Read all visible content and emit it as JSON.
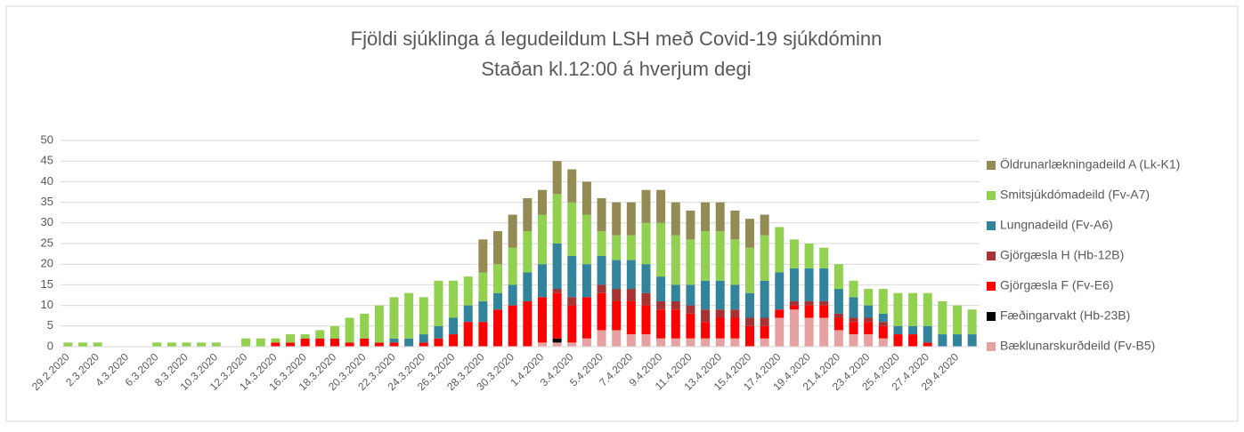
{
  "chart_data": {
    "type": "stacked_bar",
    "title": "Fjöldi sjúklinga á legudeildum LSH með Covid-19 sjúkdóminn",
    "subtitle": "Staðan kl.12:00 á hverjum degi",
    "categories": [
      "29.2.2020",
      null,
      "2.3.2020",
      null,
      "4.3.2020",
      null,
      "6.3.2020",
      null,
      "8.3.2020",
      null,
      "10.3.2020",
      null,
      "12.3.2020",
      null,
      "14.3.2020",
      null,
      "16.3.2020",
      null,
      "18.3.2020",
      null,
      "20.3.2020",
      null,
      "22.3.2020",
      null,
      "24.3.2020",
      null,
      "26.3.2020",
      null,
      "28.3.2020",
      null,
      "30.3.2020",
      null,
      "1.4.2020",
      null,
      "3.4.2020",
      null,
      "5.4.2020",
      null,
      "7.4.2020",
      null,
      "9.4.2020",
      null,
      "11.4.2020",
      null,
      "13.4.2020",
      null,
      "15.4.2020",
      null,
      "17.4.2020",
      null,
      "19.4.2020",
      null,
      "21.4.2020",
      null,
      "23.4.2020",
      null,
      "25.4.2020",
      null,
      "27.4.2020",
      null,
      "29.4.2020",
      null
    ],
    "series": [
      {
        "name": "Bæklunarskurðdeild (Fv-B5)",
        "color": "#e6a1a1",
        "values": [
          0,
          0,
          0,
          0,
          0,
          0,
          0,
          0,
          0,
          0,
          0,
          0,
          0,
          0,
          0,
          0,
          0,
          0,
          0,
          0,
          0,
          0,
          0,
          0,
          0,
          0,
          0,
          0,
          0,
          0,
          0,
          0,
          1,
          1,
          1,
          2,
          4,
          4,
          3,
          3,
          2,
          2,
          2,
          2,
          2,
          2,
          0,
          2,
          7,
          9,
          7,
          7,
          4,
          3,
          3,
          2,
          0,
          0,
          0,
          0,
          0,
          0
        ]
      },
      {
        "name": "Fæðingarvakt (Hb-23B)",
        "color": "#000000",
        "values": [
          0,
          0,
          0,
          0,
          0,
          0,
          0,
          0,
          0,
          0,
          0,
          0,
          0,
          0,
          0,
          0,
          0,
          0,
          0,
          0,
          0,
          0,
          0,
          0,
          0,
          0,
          0,
          0,
          0,
          0,
          0,
          0,
          0,
          1,
          0,
          0,
          0,
          0,
          0,
          0,
          0,
          0,
          0,
          0,
          0,
          0,
          0,
          0,
          0,
          0,
          0,
          0,
          0,
          0,
          0,
          0,
          0,
          0,
          0,
          0,
          0,
          0
        ]
      },
      {
        "name": "Gjörgæsla F (Fv-E6)",
        "color": "#ff0000",
        "values": [
          0,
          0,
          0,
          0,
          0,
          0,
          0,
          0,
          0,
          0,
          0,
          0,
          0,
          0,
          1,
          1,
          2,
          2,
          2,
          1,
          2,
          1,
          1,
          0,
          1,
          2,
          3,
          6,
          6,
          9,
          10,
          11,
          11,
          11,
          9,
          10,
          9,
          7,
          8,
          7,
          7,
          7,
          6,
          4,
          5,
          5,
          5,
          3,
          2,
          1,
          3,
          3,
          3,
          3,
          3,
          3,
          3,
          3,
          1,
          0,
          0,
          0
        ]
      },
      {
        "name": "Gjörgæsla H (Hb-12B)",
        "color": "#a83232",
        "values": [
          0,
          0,
          0,
          0,
          0,
          0,
          0,
          0,
          0,
          0,
          0,
          0,
          0,
          0,
          0,
          0,
          0,
          0,
          0,
          0,
          0,
          0,
          0,
          0,
          0,
          0,
          0,
          0,
          0,
          0,
          0,
          0,
          0,
          1,
          2,
          0,
          2,
          3,
          3,
          3,
          2,
          2,
          2,
          3,
          2,
          2,
          2,
          2,
          0,
          1,
          1,
          1,
          1,
          1,
          1,
          1,
          0,
          0,
          0,
          0,
          0,
          0
        ]
      },
      {
        "name": "Lungnadeild (Fv-A6)",
        "color": "#31849b",
        "values": [
          0,
          0,
          0,
          0,
          0,
          0,
          0,
          0,
          0,
          0,
          0,
          0,
          0,
          0,
          0,
          0,
          0,
          0,
          0,
          0,
          0,
          0,
          1,
          2,
          2,
          3,
          4,
          4,
          5,
          4,
          5,
          7,
          8,
          11,
          10,
          8,
          7,
          7,
          7,
          7,
          6,
          4,
          5,
          7,
          7,
          6,
          6,
          9,
          9,
          8,
          8,
          8,
          6,
          5,
          3,
          2,
          2,
          2,
          4,
          3,
          3,
          3
        ]
      },
      {
        "name": "Smitsjúkdómadeild (Fv-A7)",
        "color": "#92d050",
        "values": [
          1,
          1,
          1,
          0,
          0,
          0,
          1,
          1,
          1,
          1,
          1,
          0,
          2,
          2,
          1,
          2,
          1,
          2,
          3,
          6,
          6,
          9,
          10,
          11,
          9,
          11,
          9,
          7,
          7,
          7,
          9,
          10,
          12,
          12,
          13,
          12,
          6,
          6,
          6,
          10,
          13,
          12,
          11,
          12,
          12,
          11,
          11,
          11,
          11,
          7,
          6,
          5,
          6,
          4,
          4,
          6,
          8,
          8,
          8,
          8,
          7,
          6
        ]
      },
      {
        "name": "Öldrunarlækningadeild A (Lk-K1)",
        "color": "#948a54",
        "values": [
          0,
          0,
          0,
          0,
          0,
          0,
          0,
          0,
          0,
          0,
          0,
          0,
          0,
          0,
          0,
          0,
          0,
          0,
          0,
          0,
          0,
          0,
          0,
          0,
          0,
          0,
          0,
          0,
          8,
          8,
          8,
          8,
          6,
          8,
          8,
          8,
          8,
          8,
          8,
          8,
          8,
          8,
          7,
          7,
          7,
          7,
          7,
          5,
          0,
          0,
          0,
          0,
          0,
          0,
          0,
          0,
          0,
          0,
          0,
          0,
          0,
          0
        ]
      }
    ],
    "ylim": [
      0,
      50
    ],
    "yticks": [
      0,
      5,
      10,
      15,
      20,
      25,
      30,
      35,
      40,
      45,
      50
    ],
    "grid": true,
    "legend": "right"
  }
}
